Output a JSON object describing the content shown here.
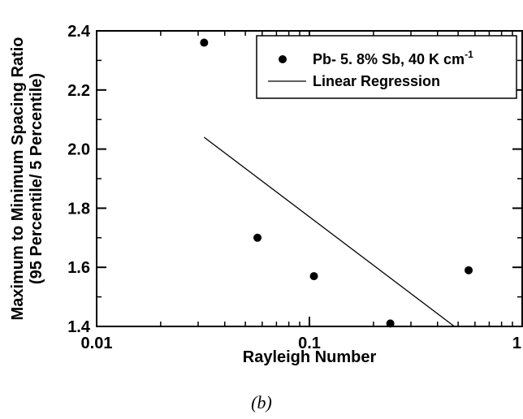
{
  "caption": "(b)",
  "chart_data": {
    "type": "scatter",
    "xscale": "log",
    "xlim": [
      0.01,
      1
    ],
    "ylim": [
      1.4,
      2.4
    ],
    "xlabel": "Rayleigh Number",
    "ylabel_lines": [
      "Maximum to Minimum Spacing Ratio",
      "(95 Percentile/ 5 Percentile)"
    ],
    "x_ticks": [
      {
        "value": 0.01,
        "label": "0.01"
      },
      {
        "value": 0.1,
        "label": "0.1"
      },
      {
        "value": 1,
        "label": "1"
      }
    ],
    "y_ticks": [
      {
        "value": 1.4,
        "label": "1.4"
      },
      {
        "value": 1.6,
        "label": "1.6"
      },
      {
        "value": 1.8,
        "label": "1.8"
      },
      {
        "value": 2.0,
        "label": "2.0"
      },
      {
        "value": 2.2,
        "label": "2.2"
      },
      {
        "value": 2.4,
        "label": "2.4"
      }
    ],
    "series": [
      {
        "name": "Pb- 5. 8% Sb, 40 K cm-1",
        "kind": "scatter",
        "marker": "filled-circle",
        "color": "#000000",
        "points": [
          {
            "x": 0.032,
            "y": 2.36
          },
          {
            "x": 0.057,
            "y": 1.7
          },
          {
            "x": 0.105,
            "y": 1.57
          },
          {
            "x": 0.24,
            "y": 1.41
          },
          {
            "x": 0.56,
            "y": 1.59
          }
        ]
      },
      {
        "name": "Linear Regression",
        "kind": "line",
        "color": "#000000",
        "points": [
          {
            "x": 0.032,
            "y": 2.04
          },
          {
            "x": 0.48,
            "y": 1.4
          }
        ]
      }
    ],
    "legend": {
      "position": "top-right",
      "entries": [
        {
          "text": "Pb- 5. 8% Sb, 40 K cm",
          "superscript": "-1",
          "marker": "dot"
        },
        {
          "text": "Linear Regression",
          "marker": "line"
        }
      ]
    },
    "grid": false
  }
}
